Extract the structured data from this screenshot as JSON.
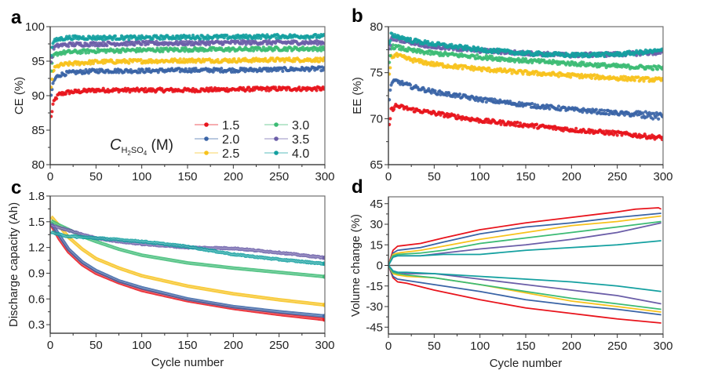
{
  "figure": {
    "legend": {
      "title_main": "C",
      "title_sub": "H",
      "title_sub2": "2",
      "title_sub3": "SO",
      "title_sub4": "4",
      "title_unit": " (M)",
      "entries": [
        {
          "label": "1.5",
          "color": "#e8141c"
        },
        {
          "label": "2.0",
          "color": "#3a64a6"
        },
        {
          "label": "2.5",
          "color": "#f7c21c"
        },
        {
          "label": "3.0",
          "color": "#3cbb74"
        },
        {
          "label": "3.5",
          "color": "#6b5ea8"
        },
        {
          "label": "4.0",
          "color": "#14a0a0"
        }
      ]
    }
  },
  "chart_data": [
    {
      "panel": "a",
      "type": "scatter",
      "title": "",
      "xlabel": "",
      "ylabel": "CE (%)",
      "xlim": [
        0,
        300
      ],
      "ylim": [
        80,
        100
      ],
      "xticks": [
        0,
        50,
        100,
        150,
        200,
        250,
        300
      ],
      "yticks": [
        80,
        85,
        90,
        95,
        100
      ],
      "grid": false,
      "legend": "bottom-right",
      "series": [
        {
          "name": "1.5",
          "x": [
            1,
            3,
            6,
            10,
            20,
            50,
            100,
            150,
            200,
            250,
            300
          ],
          "y": [
            86.9,
            88.7,
            89.6,
            90.2,
            90.5,
            90.8,
            90.8,
            90.8,
            90.9,
            91.0,
            91.0
          ]
        },
        {
          "name": "2.0",
          "x": [
            1,
            3,
            6,
            10,
            20,
            50,
            100,
            150,
            200,
            250,
            300
          ],
          "y": [
            89.8,
            91.8,
            92.6,
            93.0,
            93.3,
            93.6,
            93.6,
            93.7,
            93.7,
            93.8,
            93.9
          ]
        },
        {
          "name": "2.5",
          "x": [
            1,
            3,
            6,
            10,
            20,
            50,
            100,
            150,
            200,
            250,
            300
          ],
          "y": [
            91.0,
            93.6,
            94.1,
            94.4,
            94.6,
            94.9,
            95.0,
            95.1,
            95.1,
            95.2,
            95.2
          ]
        },
        {
          "name": "3.0",
          "x": [
            1,
            3,
            6,
            10,
            20,
            50,
            100,
            150,
            200,
            250,
            300
          ],
          "y": [
            93.3,
            95.6,
            96.0,
            96.2,
            96.3,
            96.5,
            96.6,
            96.7,
            96.7,
            96.8,
            96.8
          ]
        },
        {
          "name": "3.5",
          "x": [
            1,
            3,
            6,
            10,
            20,
            50,
            100,
            150,
            200,
            250,
            300
          ],
          "y": [
            94.8,
            96.8,
            97.1,
            97.3,
            97.4,
            97.5,
            97.6,
            97.6,
            97.7,
            97.7,
            97.7
          ]
        },
        {
          "name": "4.0",
          "x": [
            1,
            3,
            6,
            10,
            20,
            50,
            100,
            150,
            200,
            250,
            300
          ],
          "y": [
            96.0,
            97.7,
            98.0,
            98.2,
            98.4,
            98.4,
            98.4,
            98.5,
            98.5,
            98.6,
            98.6
          ]
        }
      ]
    },
    {
      "panel": "b",
      "type": "scatter",
      "title": "",
      "xlabel": "",
      "ylabel": "EE (%)",
      "xlim": [
        0,
        300
      ],
      "ylim": [
        65,
        80
      ],
      "xticks": [
        0,
        50,
        100,
        150,
        200,
        250,
        300
      ],
      "yticks": [
        65,
        70,
        75,
        80
      ],
      "grid": false,
      "series": [
        {
          "name": "1.5",
          "x": [
            1,
            3,
            8,
            25,
            50,
            100,
            150,
            200,
            250,
            300
          ],
          "y": [
            69.3,
            70.9,
            71.4,
            71.0,
            70.6,
            69.8,
            69.3,
            68.8,
            68.4,
            67.9
          ]
        },
        {
          "name": "2.0",
          "x": [
            1,
            3,
            8,
            25,
            50,
            100,
            150,
            200,
            250,
            300
          ],
          "y": [
            72.1,
            73.8,
            74.1,
            73.5,
            72.9,
            72.1,
            71.5,
            71.0,
            70.6,
            70.2
          ]
        },
        {
          "name": "2.5",
          "x": [
            1,
            3,
            8,
            25,
            50,
            100,
            150,
            200,
            250,
            300
          ],
          "y": [
            74.8,
            76.7,
            76.9,
            76.4,
            75.9,
            75.4,
            75.0,
            74.7,
            74.4,
            74.2
          ]
        },
        {
          "name": "3.0",
          "x": [
            1,
            3,
            8,
            25,
            50,
            100,
            150,
            200,
            250,
            300
          ],
          "y": [
            76.1,
            77.8,
            77.8,
            77.4,
            77.1,
            76.7,
            76.3,
            76.0,
            75.7,
            75.5
          ]
        },
        {
          "name": "3.5",
          "x": [
            1,
            3,
            8,
            25,
            50,
            100,
            150,
            200,
            250,
            300
          ],
          "y": [
            77.4,
            78.8,
            78.7,
            78.3,
            77.8,
            77.4,
            77.1,
            76.9,
            77.0,
            77.2
          ]
        },
        {
          "name": "4.0",
          "x": [
            1,
            3,
            8,
            25,
            50,
            100,
            150,
            200,
            250,
            300
          ],
          "y": [
            78.0,
            79.1,
            79.0,
            78.5,
            78.1,
            77.5,
            77.1,
            76.9,
            77.0,
            77.4
          ]
        }
      ]
    },
    {
      "panel": "c",
      "type": "line",
      "title": "",
      "xlabel": "Cycle number",
      "ylabel": "Discharge capacity (Ah)",
      "xlim": [
        0,
        300
      ],
      "ylim": [
        0.2,
        1.8
      ],
      "xticks": [
        0,
        50,
        100,
        150,
        200,
        250,
        300
      ],
      "yticks": [
        0.3,
        0.6,
        0.9,
        1.2,
        1.5,
        1.8
      ],
      "grid": false,
      "series": [
        {
          "name": "1.5",
          "x": [
            1,
            10,
            20,
            35,
            50,
            75,
            100,
            150,
            200,
            250,
            300
          ],
          "y": [
            1.47,
            1.3,
            1.15,
            1.0,
            0.9,
            0.79,
            0.7,
            0.58,
            0.49,
            0.42,
            0.36
          ]
        },
        {
          "name": "2.0",
          "x": [
            1,
            10,
            20,
            35,
            50,
            75,
            100,
            150,
            200,
            250,
            300
          ],
          "y": [
            1.49,
            1.34,
            1.18,
            1.03,
            0.93,
            0.81,
            0.73,
            0.6,
            0.51,
            0.45,
            0.4
          ]
        },
        {
          "name": "2.5",
          "x": [
            1,
            10,
            20,
            35,
            50,
            75,
            100,
            150,
            200,
            250,
            300
          ],
          "y": [
            1.56,
            1.45,
            1.32,
            1.18,
            1.07,
            0.96,
            0.87,
            0.75,
            0.66,
            0.59,
            0.53
          ]
        },
        {
          "name": "3.0",
          "x": [
            1,
            10,
            20,
            35,
            50,
            75,
            100,
            150,
            200,
            250,
            300
          ],
          "y": [
            1.51,
            1.46,
            1.41,
            1.33,
            1.27,
            1.18,
            1.11,
            1.02,
            0.96,
            0.91,
            0.86
          ]
        },
        {
          "name": "3.5",
          "x": [
            1,
            10,
            20,
            35,
            50,
            75,
            100,
            150,
            200,
            250,
            300
          ],
          "y": [
            1.46,
            1.43,
            1.4,
            1.35,
            1.31,
            1.27,
            1.24,
            1.2,
            1.19,
            1.14,
            1.08
          ]
        },
        {
          "name": "4.0",
          "x": [
            1,
            10,
            20,
            35,
            50,
            75,
            100,
            150,
            200,
            250,
            300
          ],
          "y": [
            1.38,
            1.35,
            1.33,
            1.32,
            1.31,
            1.29,
            1.27,
            1.21,
            1.12,
            1.06,
            1.01
          ]
        }
      ]
    },
    {
      "panel": "d",
      "type": "line",
      "title": "",
      "xlabel": "Cycle number",
      "ylabel": "Volume change (%)",
      "xlim": [
        0,
        300
      ],
      "ylim": [
        -50,
        50
      ],
      "xticks": [
        0,
        50,
        100,
        150,
        200,
        250,
        300
      ],
      "yticks": [
        -45,
        -30,
        -15,
        0,
        15,
        30,
        45
      ],
      "grid": false,
      "reference_line": 0,
      "series": [
        {
          "name": "1.5 (expansion)",
          "x": [
            0,
            5,
            10,
            35,
            60,
            100,
            150,
            200,
            250,
            270,
            295,
            298
          ],
          "y": [
            0,
            11,
            14,
            16,
            20,
            26,
            31,
            35,
            39,
            41,
            42,
            41
          ]
        },
        {
          "name": "2.0 (expansion)",
          "x": [
            0,
            5,
            10,
            35,
            60,
            100,
            150,
            200,
            250,
            298
          ],
          "y": [
            0,
            9,
            11,
            13,
            17,
            23,
            28,
            31,
            35,
            38
          ]
        },
        {
          "name": "2.5 (expansion)",
          "x": [
            0,
            5,
            10,
            35,
            60,
            100,
            150,
            200,
            250,
            298
          ],
          "y": [
            0,
            8,
            9,
            11,
            14,
            19,
            24,
            29,
            32,
            36
          ]
        },
        {
          "name": "3.0 (expansion)",
          "x": [
            0,
            5,
            10,
            35,
            60,
            100,
            150,
            200,
            250,
            298
          ],
          "y": [
            0,
            7,
            8,
            9,
            11,
            16,
            20,
            24,
            28,
            32
          ]
        },
        {
          "name": "3.5 (expansion)",
          "x": [
            0,
            5,
            10,
            35,
            60,
            100,
            150,
            200,
            250,
            298
          ],
          "y": [
            0,
            6,
            7,
            7,
            9,
            12,
            15,
            19,
            24,
            31
          ]
        },
        {
          "name": "4.0 (expansion)",
          "x": [
            0,
            5,
            10,
            35,
            60,
            100,
            150,
            200,
            250,
            298
          ],
          "y": [
            0,
            6,
            7,
            7,
            8,
            8,
            11,
            13,
            15,
            18
          ]
        },
        {
          "name": "1.5 (contraction)",
          "x": [
            0,
            5,
            10,
            20,
            50,
            100,
            150,
            200,
            250,
            298
          ],
          "y": [
            0,
            -9,
            -12,
            -13,
            -18,
            -25,
            -31,
            -35,
            -39,
            -42
          ]
        },
        {
          "name": "2.0 (contraction)",
          "x": [
            0,
            5,
            10,
            20,
            50,
            100,
            150,
            200,
            250,
            298
          ],
          "y": [
            0,
            -8,
            -10,
            -11,
            -14,
            -19,
            -25,
            -29,
            -32,
            -36
          ]
        },
        {
          "name": "2.5 (contraction)",
          "x": [
            0,
            5,
            10,
            20,
            50,
            100,
            150,
            200,
            250,
            298
          ],
          "y": [
            0,
            -6,
            -7,
            -8,
            -9,
            -14,
            -20,
            -26,
            -30,
            -34
          ]
        },
        {
          "name": "3.0 (contraction)",
          "x": [
            0,
            5,
            10,
            20,
            50,
            100,
            150,
            200,
            250,
            298
          ],
          "y": [
            0,
            -5,
            -6,
            -7,
            -9,
            -14,
            -19,
            -24,
            -28,
            -32
          ]
        },
        {
          "name": "3.5 (contraction)",
          "x": [
            0,
            5,
            10,
            20,
            50,
            100,
            150,
            200,
            250,
            298
          ],
          "y": [
            0,
            -4,
            -5,
            -6,
            -6,
            -10,
            -14,
            -18,
            -22,
            -28
          ]
        },
        {
          "name": "4.0 (contraction)",
          "x": [
            0,
            5,
            10,
            20,
            50,
            100,
            150,
            200,
            250,
            298
          ],
          "y": [
            0,
            -4,
            -5,
            -5,
            -6,
            -8,
            -10,
            -12,
            -15,
            -19
          ]
        }
      ]
    }
  ]
}
